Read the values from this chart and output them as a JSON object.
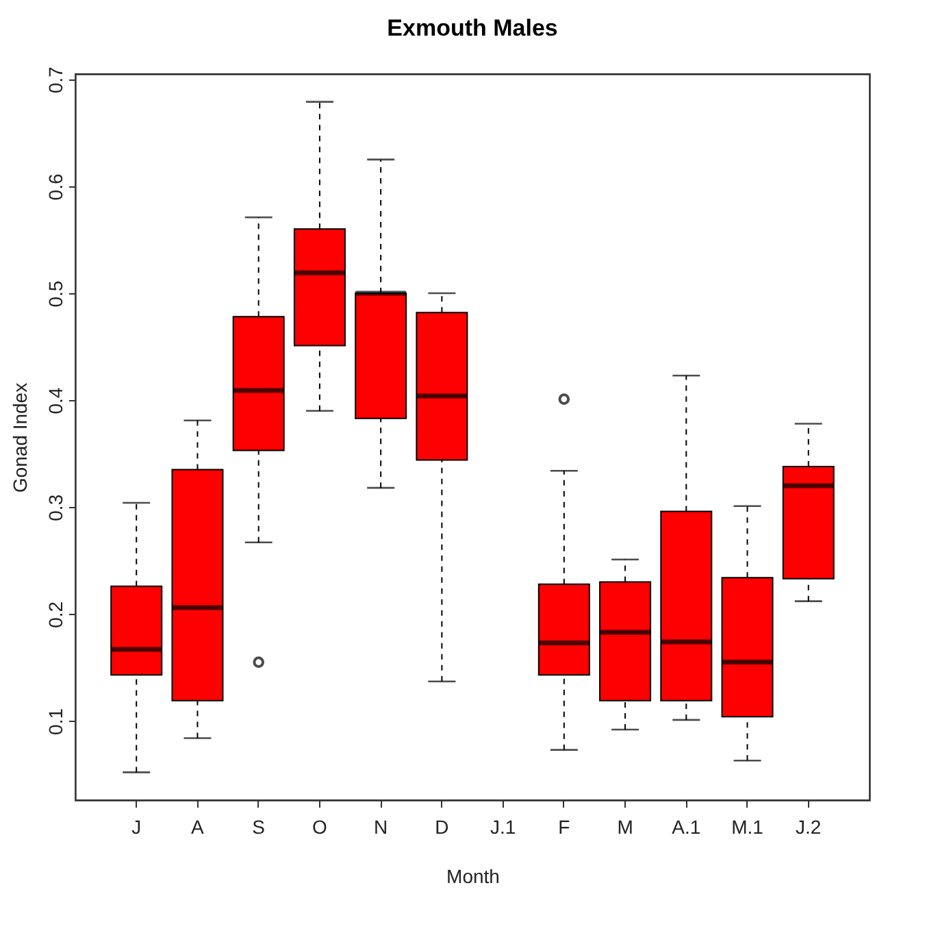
{
  "chart_data": {
    "type": "box",
    "title": "Exmouth Males",
    "xlabel": "Month",
    "ylabel": "Gonad Index",
    "categories": [
      "J",
      "A",
      "S",
      "O",
      "N",
      "D",
      "J.1",
      "F",
      "M",
      "A.1",
      "M.1",
      "J.2"
    ],
    "series": [
      {
        "color": "#ff0000",
        "boxes": [
          {
            "low": 0.052,
            "q1": 0.143,
            "median": 0.167,
            "q3": 0.226,
            "high": 0.304
          },
          {
            "low": 0.084,
            "q1": 0.119,
            "median": 0.206,
            "q3": 0.335,
            "high": 0.381
          },
          {
            "low": 0.267,
            "q1": 0.353,
            "median": 0.409,
            "q3": 0.478,
            "high": 0.571,
            "outliers": [
              0.155
            ]
          },
          {
            "low": 0.39,
            "q1": 0.451,
            "median": 0.519,
            "q3": 0.56,
            "high": 0.679
          },
          {
            "low": 0.318,
            "q1": 0.383,
            "median": 0.5,
            "q3": 0.5,
            "high": 0.625
          },
          {
            "low": 0.137,
            "q1": 0.344,
            "median": 0.404,
            "q3": 0.482,
            "high": 0.5
          },
          null,
          {
            "low": 0.073,
            "q1": 0.143,
            "median": 0.173,
            "q3": 0.228,
            "high": 0.334,
            "outliers": [
              0.401
            ]
          },
          {
            "low": 0.092,
            "q1": 0.119,
            "median": 0.183,
            "q3": 0.23,
            "high": 0.251
          },
          {
            "low": 0.101,
            "q1": 0.119,
            "median": 0.174,
            "q3": 0.296,
            "high": 0.423
          },
          {
            "low": 0.063,
            "q1": 0.104,
            "median": 0.155,
            "q3": 0.234,
            "high": 0.301
          },
          {
            "low": 0.212,
            "q1": 0.233,
            "median": 0.32,
            "q3": 0.338,
            "high": 0.378
          }
        ]
      }
    ],
    "ylim": [
      0.026,
      0.705
    ],
    "yticks": [
      0.1,
      0.2,
      0.3,
      0.4,
      0.5,
      0.6,
      0.7
    ],
    "grid": false
  }
}
